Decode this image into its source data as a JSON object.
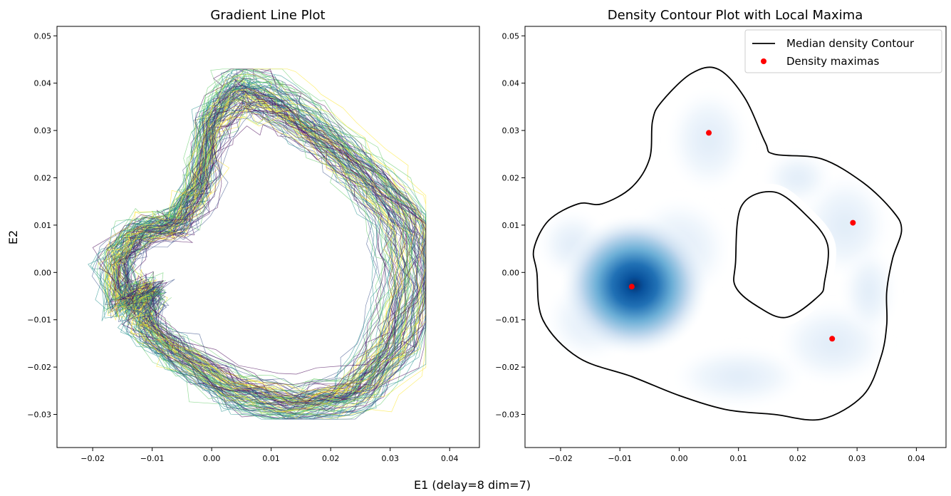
{
  "figure": {
    "xlabel": "E1 (delay=8 dim=7)"
  },
  "chart_data": [
    {
      "type": "line",
      "title": "Gradient Line Plot",
      "xlabel": "E1 (delay=8 dim=7)",
      "ylabel": "E2",
      "xlim": [
        -0.026,
        0.045
      ],
      "ylim": [
        -0.037,
        0.052
      ],
      "xticks": [
        -0.02,
        -0.01,
        0.0,
        0.01,
        0.02,
        0.03,
        0.04
      ],
      "xtick_labels": [
        "−0.02",
        "−0.01",
        "0.00",
        "0.01",
        "0.02",
        "0.03",
        "0.04"
      ],
      "yticks": [
        -0.03,
        -0.02,
        -0.01,
        0.0,
        0.01,
        0.02,
        0.03,
        0.04,
        0.05
      ],
      "ytick_labels": [
        "−0.03",
        "−0.02",
        "−0.01",
        "0.00",
        "0.01",
        "0.02",
        "0.03",
        "0.04",
        "0.05"
      ],
      "grid": false,
      "colormap": [
        "#440154",
        "#3b528b",
        "#21918c",
        "#5ec962",
        "#fde725"
      ],
      "trajectory_extent": {
        "x": [
          -0.021,
          0.036
        ],
        "y": [
          -0.031,
          0.043
        ]
      }
    },
    {
      "type": "area",
      "title": "Density Contour Plot with Local Maxima",
      "xlim": [
        -0.026,
        0.045
      ],
      "ylim": [
        -0.037,
        0.052
      ],
      "xticks": [
        -0.02,
        -0.01,
        0.0,
        0.01,
        0.02,
        0.03,
        0.04
      ],
      "xtick_labels": [
        "−0.02",
        "−0.01",
        "0.00",
        "0.01",
        "0.02",
        "0.03",
        "0.04"
      ],
      "yticks": [
        -0.03,
        -0.02,
        -0.01,
        0.0,
        0.01,
        0.02,
        0.03,
        0.04,
        0.05
      ],
      "ytick_labels": [
        "−0.03",
        "−0.02",
        "−0.01",
        "0.00",
        "0.01",
        "0.02",
        "0.03",
        "0.04",
        "0.05"
      ],
      "grid": false,
      "colormap": "Blues",
      "legend_position": "top-right",
      "legend": [
        {
          "label": "Median density Contour",
          "marker": "line",
          "color": "#000000"
        },
        {
          "label": "Density maximas",
          "marker": "dot",
          "color": "#ff0000"
        }
      ],
      "density_maxima": [
        {
          "x": -0.008,
          "y": -0.003
        },
        {
          "x": 0.005,
          "y": 0.0295
        },
        {
          "x": 0.0293,
          "y": 0.0105
        },
        {
          "x": 0.0258,
          "y": -0.014
        }
      ],
      "median_contour_outer": [
        [
          -0.024,
          0.0
        ],
        [
          -0.023,
          -0.01
        ],
        [
          -0.017,
          -0.018
        ],
        [
          -0.008,
          -0.022
        ],
        [
          0.0,
          -0.026
        ],
        [
          0.008,
          -0.029
        ],
        [
          0.016,
          -0.03
        ],
        [
          0.024,
          -0.031
        ],
        [
          0.031,
          -0.026
        ],
        [
          0.034,
          -0.018
        ],
        [
          0.035,
          -0.011
        ],
        [
          0.035,
          -0.004
        ],
        [
          0.036,
          0.003
        ],
        [
          0.0375,
          0.009
        ],
        [
          0.036,
          0.013
        ],
        [
          0.031,
          0.019
        ],
        [
          0.024,
          0.024
        ],
        [
          0.016,
          0.025
        ],
        [
          0.0145,
          0.0275
        ],
        [
          0.011,
          0.037
        ],
        [
          0.0065,
          0.043
        ],
        [
          0.002,
          0.042
        ],
        [
          -0.003,
          0.036
        ],
        [
          -0.0045,
          0.032
        ],
        [
          -0.005,
          0.024
        ],
        [
          -0.008,
          0.018
        ],
        [
          -0.013,
          0.0145
        ],
        [
          -0.017,
          0.0145
        ],
        [
          -0.022,
          0.011
        ],
        [
          -0.0245,
          0.005
        ]
      ],
      "median_contour_inner": [
        [
          0.0105,
          0.014
        ],
        [
          0.016,
          0.017
        ],
        [
          0.0215,
          0.012
        ],
        [
          0.025,
          0.006
        ],
        [
          0.0245,
          -0.002
        ],
        [
          0.0235,
          -0.005
        ],
        [
          0.018,
          -0.0095
        ],
        [
          0.013,
          -0.007
        ],
        [
          0.0095,
          -0.003
        ],
        [
          0.0095,
          0.002
        ]
      ]
    }
  ]
}
